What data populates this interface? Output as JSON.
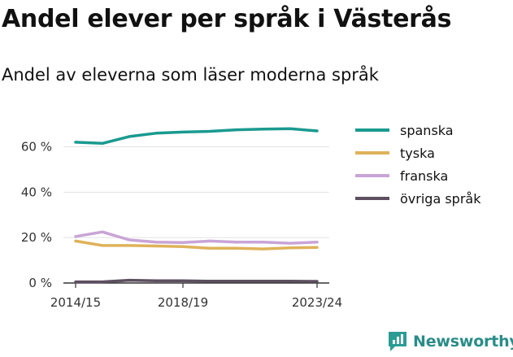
{
  "title": "Andel elever per språk i Västerås",
  "subtitle": "Andel av eleverna som läser moderna språk",
  "brand": {
    "name": "Newsworthy",
    "icon": "newsworthy-logo-icon",
    "color": "#2a9c94"
  },
  "chart_data": {
    "type": "line",
    "title": "Andel elever per språk i Västerås",
    "subtitle": "Andel av eleverna som läser moderna språk",
    "x": [
      "2014/15",
      "2015/16",
      "2016/17",
      "2017/18",
      "2018/19",
      "2019/20",
      "2020/21",
      "2021/22",
      "2022/23",
      "2023/24"
    ],
    "x_tick_labels": [
      "2014/15",
      "2018/19",
      "2023/24"
    ],
    "y_ticks": [
      0,
      20,
      40,
      60
    ],
    "y_tick_labels": [
      "0 %",
      "20 %",
      "40 %",
      "60 %"
    ],
    "ylim": [
      0,
      70
    ],
    "grid": true,
    "legend_position": "right",
    "series": [
      {
        "name": "spanska",
        "color": "#1a9a90",
        "values": [
          62,
          61.5,
          64.5,
          66,
          66.5,
          66.8,
          67.5,
          67.8,
          68,
          67
        ]
      },
      {
        "name": "tyska",
        "color": "#dfb25a",
        "values": [
          18.5,
          16.5,
          16.5,
          16.3,
          16,
          15.3,
          15.3,
          15,
          15.5,
          15.7
        ]
      },
      {
        "name": "franska",
        "color": "#c9a4d6",
        "values": [
          20.5,
          22.5,
          19,
          18,
          17.8,
          18.5,
          18,
          18,
          17.5,
          18
        ]
      },
      {
        "name": "övriga språk",
        "color": "#5d4f60",
        "values": [
          0.5,
          0.5,
          1.2,
          1,
          1,
          0.8,
          0.8,
          0.8,
          0.8,
          0.7
        ]
      }
    ]
  }
}
